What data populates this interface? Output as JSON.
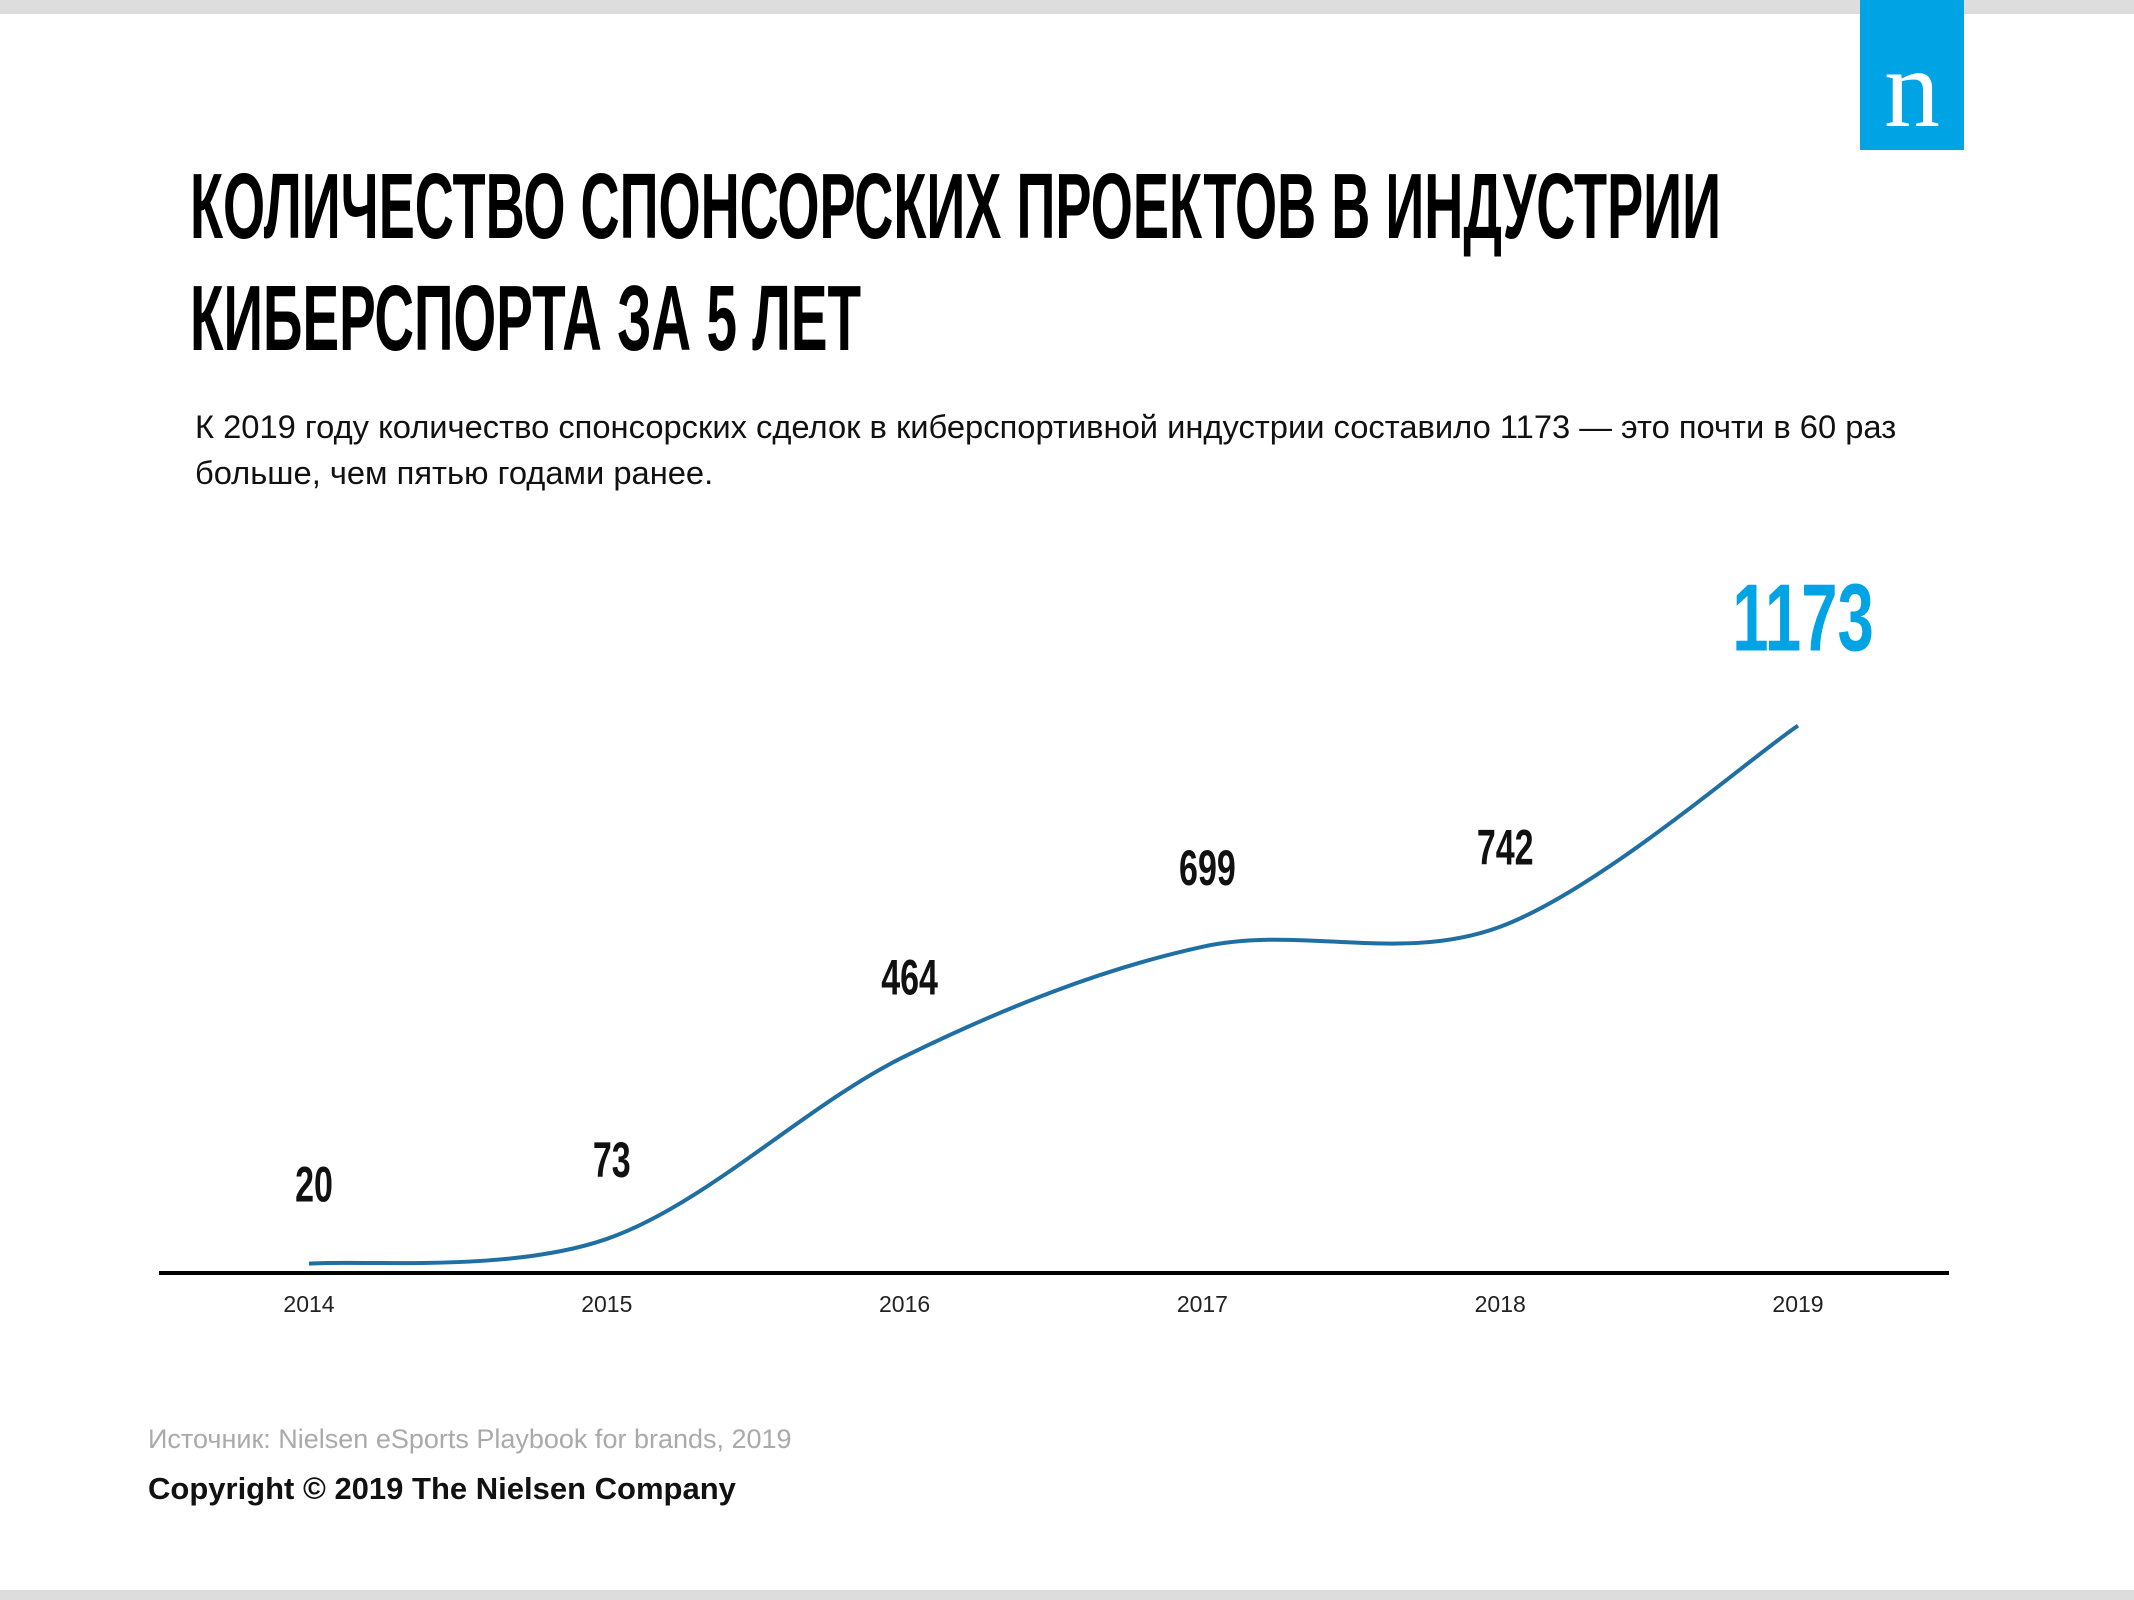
{
  "logo": "n",
  "chart_data": {
    "type": "line",
    "title": [
      "КОЛИЧЕСТВО СПОНСОРСКИХ ПРОЕКТОВ В ИНДУСТРИИ",
      "КИБЕРСПОРТА ЗА 5 ЛЕТ"
    ],
    "subtitle": "К 2019 году количество спонсорских сделок в киберспортивной индустрии составило 1173 — это почти в 60 раз больше, чем пятью годами ранее.",
    "categories": [
      "2014",
      "2015",
      "2016",
      "2017",
      "2018",
      "2019"
    ],
    "values": [
      20,
      73,
      464,
      699,
      742,
      1173
    ],
    "color": "#1f6fa3",
    "value_label_colors": [
      "#111111",
      "#111111",
      "#111111",
      "#111111",
      "#111111",
      "#00a3e4"
    ],
    "ylim": [
      0,
      1200
    ]
  },
  "source": "Источник: Nielsen eSports Playbook for brands, 2019",
  "copyright": "Copyright © 2019 The Nielsen Company"
}
